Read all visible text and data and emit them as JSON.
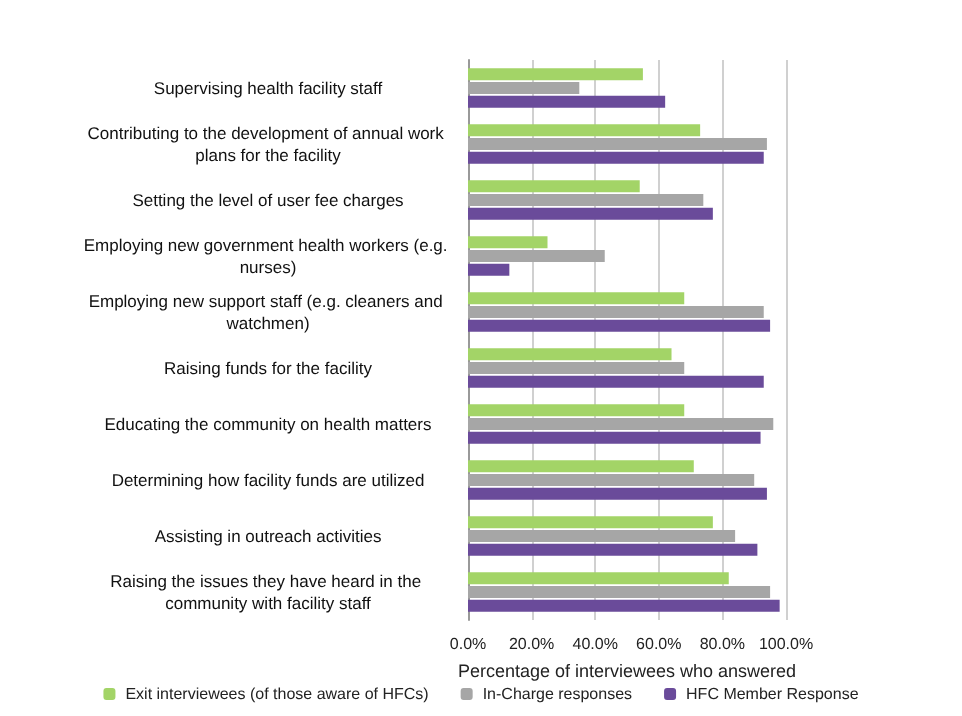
{
  "chart_data": {
    "type": "bar",
    "orientation": "horizontal",
    "xlabel": "Percentage of interviewees who answered",
    "categories": [
      "Supervising health facility staff",
      "Contributing to the development of annual work plans for the facility",
      "Setting the level of user fee charges",
      "Employing new government health workers (e.g. nurses)",
      "Employing new support staff (e.g. cleaners and watchmen)",
      "Raising funds for the facility",
      "Educating the community on health matters",
      "Determining how facility funds are utilized",
      "Assisting in outreach activities",
      "Raising the issues they have heard in the community with facility staff"
    ],
    "series": [
      {
        "name": "Exit interviewees (of those aware of HFCs)",
        "color": "#a3d467",
        "values": [
          55,
          73,
          54,
          25,
          68,
          64,
          68,
          71,
          77,
          82
        ]
      },
      {
        "name": "In-Charge responses",
        "color": "#a6a6a6",
        "values": [
          35,
          94,
          74,
          43,
          93,
          68,
          96,
          90,
          84,
          95
        ]
      },
      {
        "name": "HFC Member Response",
        "color": "#6a4b9a",
        "values": [
          62,
          93,
          77,
          13,
          95,
          93,
          92,
          94,
          91,
          98
        ]
      }
    ],
    "xlim": [
      0,
      100
    ],
    "xticks": [
      {
        "value": 0,
        "label": "0.0%"
      },
      {
        "value": 20,
        "label": "20.0%"
      },
      {
        "value": 40,
        "label": "40.0%"
      },
      {
        "value": 60,
        "label": "60.0%"
      },
      {
        "value": 80,
        "label": "80.0%"
      },
      {
        "value": 100,
        "label": "100.0%"
      }
    ],
    "grid": "x",
    "legend": "bottom"
  }
}
